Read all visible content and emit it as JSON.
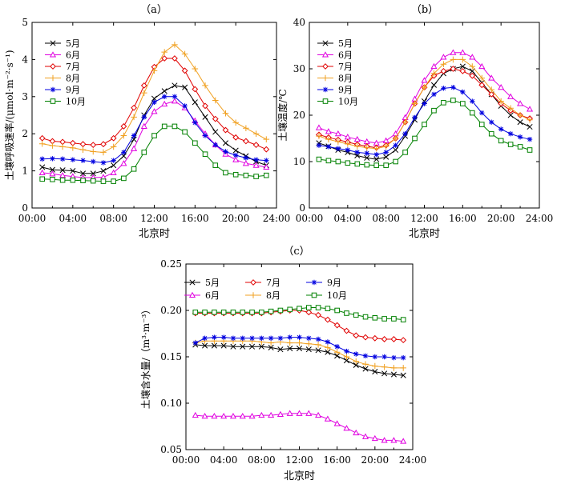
{
  "colors": {
    "5月": "#000000",
    "6月": "#e000e0",
    "7月": "#e00000",
    "8月": "#f0a020",
    "9月": "#0000e0",
    "10月": "#008000"
  },
  "chart_data": [
    {
      "panel_label": "（a）",
      "type": "line",
      "xlabel": "北京时",
      "ylabel": "土壤呼吸速率/(μmol·m⁻²·s⁻¹)",
      "xlim": [
        0,
        24
      ],
      "ylim": [
        0,
        5
      ],
      "x_ticks": [
        "00:00",
        "04:00",
        "08:00",
        "12:00",
        "16:00",
        "20:00",
        "24:00"
      ],
      "y_ticks": [
        "0",
        "1",
        "2",
        "3",
        "4",
        "5"
      ],
      "legend_position": "top-left",
      "grid": false,
      "x": [
        1,
        2,
        3,
        4,
        5,
        6,
        7,
        8,
        9,
        10,
        11,
        12,
        13,
        14,
        15,
        16,
        17,
        18,
        19,
        20,
        21,
        22,
        23
      ],
      "series": [
        {
          "name": "5月",
          "marker": "x",
          "values": [
            1.1,
            1.03,
            1.02,
            1.0,
            0.93,
            0.93,
            1.0,
            1.15,
            1.4,
            1.85,
            2.5,
            2.95,
            3.15,
            3.3,
            3.25,
            2.85,
            2.45,
            2.05,
            1.75,
            1.55,
            1.4,
            1.25,
            1.15
          ]
        },
        {
          "name": "6月",
          "marker": "triangle",
          "values": [
            0.95,
            0.92,
            0.88,
            0.85,
            0.82,
            0.82,
            0.83,
            0.95,
            1.2,
            1.6,
            2.2,
            2.6,
            2.8,
            2.88,
            2.7,
            2.35,
            2.0,
            1.7,
            1.45,
            1.3,
            1.2,
            1.15,
            1.1
          ]
        },
        {
          "name": "7月",
          "marker": "diamond",
          "values": [
            1.88,
            1.8,
            1.78,
            1.75,
            1.72,
            1.7,
            1.72,
            1.88,
            2.2,
            2.7,
            3.3,
            3.8,
            4.03,
            4.03,
            3.7,
            3.2,
            2.75,
            2.4,
            2.1,
            1.9,
            1.8,
            1.7,
            1.58
          ]
        },
        {
          "name": "8月",
          "marker": "plus",
          "values": [
            1.73,
            1.68,
            1.65,
            1.62,
            1.57,
            1.52,
            1.5,
            1.65,
            1.95,
            2.45,
            3.1,
            3.7,
            4.2,
            4.4,
            4.15,
            3.75,
            3.3,
            2.9,
            2.55,
            2.3,
            2.15,
            2.0,
            1.85
          ]
        },
        {
          "name": "9月",
          "marker": "star",
          "values": [
            1.32,
            1.33,
            1.32,
            1.3,
            1.28,
            1.25,
            1.22,
            1.28,
            1.5,
            1.95,
            2.45,
            2.85,
            3.0,
            3.0,
            2.75,
            2.3,
            1.95,
            1.7,
            1.52,
            1.42,
            1.35,
            1.3,
            1.28
          ]
        },
        {
          "name": "10月",
          "marker": "square",
          "values": [
            0.78,
            0.77,
            0.75,
            0.75,
            0.74,
            0.73,
            0.72,
            0.72,
            0.8,
            1.05,
            1.5,
            1.95,
            2.2,
            2.2,
            2.05,
            1.75,
            1.45,
            1.15,
            0.95,
            0.9,
            0.88,
            0.85,
            0.88
          ]
        }
      ]
    },
    {
      "panel_label": "（b）",
      "type": "line",
      "xlabel": "北京时",
      "ylabel": "土壤温度/℃",
      "xlim": [
        0,
        24
      ],
      "ylim": [
        0,
        40
      ],
      "x_ticks": [
        "00:00",
        "04:00",
        "08:00",
        "12:00",
        "16:00",
        "20:00",
        "24:00"
      ],
      "y_ticks": [
        "0",
        "10",
        "20",
        "30",
        "40"
      ],
      "legend_position": "top-left",
      "grid": false,
      "x": [
        1,
        2,
        3,
        4,
        5,
        6,
        7,
        8,
        9,
        10,
        11,
        12,
        13,
        14,
        15,
        16,
        17,
        18,
        19,
        20,
        21,
        22,
        23
      ],
      "series": [
        {
          "name": "5月",
          "marker": "x",
          "values": [
            14.0,
            13.3,
            12.5,
            12.0,
            11.3,
            10.8,
            10.5,
            11.0,
            12.5,
            15.5,
            19.0,
            23.0,
            26.5,
            29.0,
            30.0,
            30.5,
            29.5,
            27.0,
            24.5,
            22.0,
            20.0,
            18.5,
            17.5
          ]
        },
        {
          "name": "6月",
          "marker": "triangle",
          "values": [
            17.3,
            16.5,
            16.0,
            15.3,
            14.8,
            14.3,
            14.0,
            14.5,
            16.0,
            19.5,
            23.5,
            27.5,
            30.5,
            32.5,
            33.5,
            33.5,
            32.5,
            30.5,
            28.0,
            26.0,
            24.0,
            22.5,
            21.3
          ]
        },
        {
          "name": "7月",
          "marker": "diamond",
          "values": [
            15.8,
            15.2,
            14.7,
            14.2,
            13.7,
            13.3,
            13.0,
            13.5,
            15.0,
            18.5,
            22.5,
            26.0,
            28.5,
            29.5,
            30.0,
            29.5,
            28.5,
            26.5,
            24.5,
            22.5,
            21.0,
            20.0,
            19.3
          ]
        },
        {
          "name": "8月",
          "marker": "plus",
          "values": [
            15.5,
            14.8,
            14.3,
            13.8,
            13.3,
            13.0,
            12.8,
            13.3,
            15.0,
            18.5,
            22.5,
            26.0,
            29.0,
            31.0,
            32.0,
            32.0,
            30.5,
            28.0,
            25.5,
            23.0,
            21.5,
            20.0,
            19.0
          ]
        },
        {
          "name": "9月",
          "marker": "star",
          "values": [
            13.5,
            13.2,
            12.8,
            12.5,
            12.0,
            11.8,
            11.5,
            12.0,
            13.5,
            16.0,
            19.5,
            22.5,
            24.5,
            25.8,
            26.0,
            25.0,
            23.0,
            20.5,
            18.5,
            17.0,
            16.0,
            15.3,
            14.8
          ]
        },
        {
          "name": "10月",
          "marker": "square",
          "values": [
            10.5,
            10.2,
            10.0,
            9.7,
            9.5,
            9.3,
            9.2,
            9.2,
            10.0,
            12.0,
            15.0,
            18.0,
            21.0,
            22.7,
            23.2,
            22.5,
            20.5,
            18.0,
            16.0,
            14.5,
            13.7,
            13.2,
            12.5
          ]
        }
      ]
    },
    {
      "panel_label": "（c）",
      "type": "line",
      "xlabel": "北京时",
      "ylabel": "土壤含水量/（m³·m⁻³）",
      "xlim": [
        0,
        24
      ],
      "ylim": [
        0.05,
        0.25
      ],
      "x_ticks": [
        "00:00",
        "04:00",
        "08:00",
        "12:00",
        "16:00",
        "20:00",
        "24:00"
      ],
      "y_ticks": [
        "0.05",
        "0.10",
        "0.15",
        "0.20",
        "0.25"
      ],
      "legend_position": "top",
      "grid": false,
      "x": [
        1,
        2,
        3,
        4,
        5,
        6,
        7,
        8,
        9,
        10,
        11,
        12,
        13,
        14,
        15,
        16,
        17,
        18,
        19,
        20,
        21,
        22,
        23
      ],
      "series": [
        {
          "name": "5月",
          "marker": "x",
          "values": [
            0.163,
            0.162,
            0.162,
            0.162,
            0.161,
            0.161,
            0.161,
            0.161,
            0.16,
            0.158,
            0.159,
            0.159,
            0.158,
            0.157,
            0.155,
            0.151,
            0.146,
            0.141,
            0.137,
            0.134,
            0.132,
            0.131,
            0.13
          ]
        },
        {
          "name": "6月",
          "marker": "triangle",
          "values": [
            0.087,
            0.086,
            0.086,
            0.086,
            0.086,
            0.086,
            0.086,
            0.087,
            0.087,
            0.088,
            0.089,
            0.089,
            0.089,
            0.087,
            0.083,
            0.078,
            0.073,
            0.068,
            0.064,
            0.062,
            0.06,
            0.06,
            0.059
          ]
        },
        {
          "name": "7月",
          "marker": "diamond",
          "values": [
            0.197,
            0.197,
            0.197,
            0.197,
            0.197,
            0.197,
            0.197,
            0.197,
            0.198,
            0.199,
            0.2,
            0.2,
            0.198,
            0.195,
            0.19,
            0.184,
            0.178,
            0.173,
            0.171,
            0.17,
            0.169,
            0.169,
            0.168
          ]
        },
        {
          "name": "8月",
          "marker": "plus",
          "values": [
            0.165,
            0.167,
            0.167,
            0.167,
            0.167,
            0.167,
            0.167,
            0.166,
            0.165,
            0.166,
            0.165,
            0.165,
            0.164,
            0.163,
            0.16,
            0.155,
            0.15,
            0.145,
            0.142,
            0.14,
            0.139,
            0.138,
            0.138
          ]
        },
        {
          "name": "9月",
          "marker": "star",
          "values": [
            0.165,
            0.17,
            0.171,
            0.171,
            0.17,
            0.17,
            0.17,
            0.17,
            0.17,
            0.17,
            0.171,
            0.171,
            0.17,
            0.169,
            0.166,
            0.161,
            0.156,
            0.153,
            0.151,
            0.15,
            0.15,
            0.149,
            0.149
          ]
        },
        {
          "name": "10月",
          "marker": "square",
          "values": [
            0.198,
            0.198,
            0.198,
            0.198,
            0.198,
            0.198,
            0.198,
            0.198,
            0.199,
            0.2,
            0.201,
            0.202,
            0.203,
            0.203,
            0.202,
            0.2,
            0.197,
            0.195,
            0.193,
            0.192,
            0.191,
            0.191,
            0.19
          ]
        }
      ]
    }
  ]
}
